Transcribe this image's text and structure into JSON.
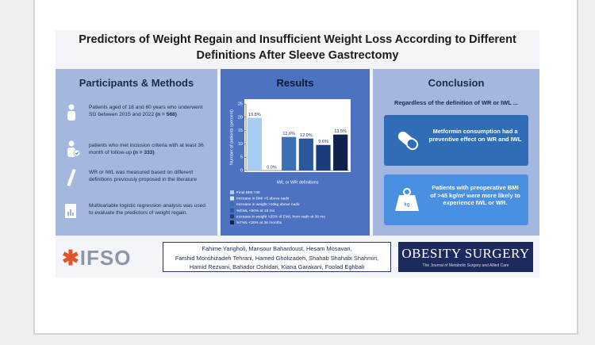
{
  "title": "Predictors of Weight Regain and Insufficient Weight Loss According to Different Definitions After Sleeve Gastrectomy",
  "methods": {
    "heading": "Participants & Methods",
    "items": [
      {
        "text": "Patients aged of 18 and 60 years who underwent SG between 2015 and 2022",
        "emphasis": "(n = 568)"
      },
      {
        "text": "patients who met inclusion criteria with at least 36 month of follow-up",
        "emphasis": "(n = 333)"
      },
      {
        "text": "WR or IWL was measured based on different definitions previously proposed in the literature"
      },
      {
        "text": "Multivariable logistic regression analysis was used to evaluate the predictors of weight regain."
      }
    ]
  },
  "results": {
    "heading": "Results",
    "chart_data": {
      "type": "bar",
      "y_label": "Number of patients (percent)",
      "x_label": "IWL or WR definitions",
      "categories": [
        "Final BMI >35",
        "Increase in BMI >5 above nadir",
        "Increase in weight >10kg above nadir",
        "%EWL <50% at 18 mo",
        "increase in weight >25% of EWL from nadir at 36 mo",
        "%TWL <20% at 36 months"
      ],
      "values": [
        19.8,
        0.0,
        12.6,
        12.0,
        9.6,
        13.5
      ],
      "value_labels": [
        "19.8%",
        "0.0%",
        "12.6%",
        "12.0%",
        "9.6%",
        "13.5%"
      ],
      "colors": [
        "#a8cdf3",
        "#d4e6f8",
        "#3d6fb6",
        "#2a579e",
        "#1b3c7c",
        "#10224c"
      ],
      "ylim": [
        0,
        25
      ],
      "yticks": [
        0,
        5,
        10,
        15,
        20,
        25
      ]
    }
  },
  "conclusion": {
    "heading": "Conclusion",
    "subtitle": "Regardless of the definition of WR or IWL ...",
    "items": [
      "Metformin consumption had a preventive effect on WR and IWL",
      "Patients with preoperative BMI of >45 kg/m² were more likely to experience IWL or WR."
    ]
  },
  "footer": {
    "logo": "IFSO",
    "authors": [
      "Fahime Yarigholi, Mansour Bahardoust, Hesam Mosavari,",
      "Farshid Monshizadeh Tehrani, Hamed Gholizadeh, Shahab Shahabi Shahmiri,",
      "Hamid Rezvani, Bahador Oshidari, Kiana Garakani, Foolad Eghbali"
    ],
    "journal": "Obesity Surgery",
    "journal_subtitle": "The Journal of Metabolic Surgery and Allied Care"
  }
}
